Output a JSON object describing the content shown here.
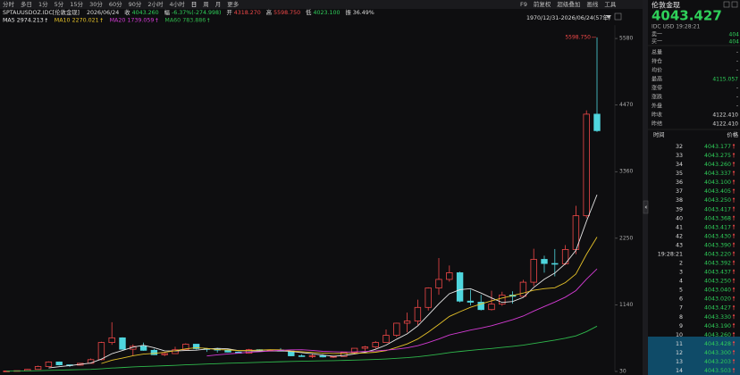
{
  "toolbar": {
    "periods": [
      "分时",
      "多日",
      "1分",
      "5分",
      "15分",
      "30分",
      "60分",
      "90分",
      "2小时",
      "4小时",
      "日",
      "周",
      "月",
      "更多"
    ],
    "tools": [
      "F9",
      "前复权",
      "超级叠加",
      "画线",
      "工具"
    ]
  },
  "info": {
    "symbol": "SPTAUUSDOZ.IDC[伦敦金现]",
    "date": "2026/06/24",
    "fields": [
      {
        "label": "收",
        "value": "4043.260",
        "color": "#2fd05a"
      },
      {
        "label": "幅",
        "value": "-6.37%(-274.998)",
        "color": "#2fd05a"
      },
      {
        "label": "开",
        "value": "4318.270",
        "color": "#f04848"
      },
      {
        "label": "高",
        "value": "5598.750",
        "color": "#f04848"
      },
      {
        "label": "低",
        "value": "4023.100",
        "color": "#2fd05a"
      },
      {
        "label": "振",
        "value": "36.49%",
        "color": "#dddddd"
      }
    ]
  },
  "chart": {
    "type": "candlestick",
    "range": "1970/12/31-2026/06/24(57年)",
    "high_label": "5598.750",
    "up_color": "#f04848",
    "down_color": "#4fd6de",
    "ylim": [
      30,
      5800
    ],
    "yticks": [
      30,
      1140,
      2250,
      3360,
      4470,
      5580
    ],
    "open": [
      35,
      37,
      43,
      64,
      112,
      187,
      140,
      135,
      165,
      226,
      512,
      590,
      400,
      448,
      382,
      309,
      327,
      391,
      484,
      410,
      401,
      386,
      353,
      333,
      392,
      383,
      387,
      369,
      290,
      288,
      290,
      272,
      279,
      347,
      416,
      438,
      513,
      632,
      834,
      870,
      1097,
      1421,
      1564,
      1675,
      1202,
      1184,
      1061,
      1152,
      1303,
      1282,
      1517,
      1898,
      1829,
      1824,
      2063,
      2625,
      4318
    ],
    "high": [
      39,
      44,
      70,
      127,
      198,
      195,
      141,
      168,
      245,
      524,
      850,
      599,
      481,
      510,
      406,
      341,
      442,
      499,
      485,
      418,
      424,
      403,
      360,
      406,
      398,
      396,
      418,
      371,
      313,
      326,
      316,
      293,
      350,
      417,
      456,
      537,
      730,
      842,
      1011,
      1226,
      1431,
      1921,
      1796,
      1694,
      1392,
      1307,
      1375,
      1358,
      1366,
      1557,
      2075,
      1959,
      2070,
      2135,
      2790,
      4381,
      5598.75
    ],
    "low": [
      35,
      37,
      43,
      64,
      112,
      129,
      104,
      131,
      165,
      216,
      474,
      391,
      297,
      374,
      303,
      285,
      326,
      390,
      395,
      356,
      345,
      344,
      330,
      326,
      369,
      372,
      367,
      283,
      273,
      253,
      263,
      256,
      278,
      320,
      375,
      411,
      513,
      603,
      681,
      802,
      1045,
      1308,
      1527,
      1181,
      1131,
      1046,
      1046,
      1124,
      1160,
      1266,
      1451,
      1677,
      1615,
      1804,
      1985,
      2584,
      4023.1
    ],
    "close": [
      37,
      43,
      64,
      112,
      187,
      140,
      135,
      165,
      226,
      512,
      590,
      400,
      448,
      382,
      309,
      327,
      391,
      484,
      410,
      401,
      386,
      353,
      333,
      392,
      383,
      387,
      369,
      290,
      288,
      290,
      272,
      279,
      347,
      416,
      438,
      513,
      632,
      834,
      870,
      1097,
      1421,
      1564,
      1675,
      1202,
      1184,
      1061,
      1152,
      1303,
      1282,
      1517,
      1898,
      1829,
      1824,
      2063,
      2625,
      4318,
      4043.26
    ],
    "ma": [
      {
        "name": "MA5",
        "value_label": "2974.213",
        "color": "#e8e8e8",
        "values": [
          null,
          null,
          null,
          null,
          89,
          109,
          128,
          148,
          171,
          236,
          326,
          379,
          435,
          466,
          426,
          373,
          371,
          379,
          384,
          403,
          414,
          407,
          377,
          373,
          369,
          370,
          373,
          364,
          343,
          325,
          302,
          284,
          295,
          321,
          350,
          399,
          469,
          567,
          657,
          789,
          971,
          1157,
          1325,
          1392,
          1409,
          1337,
          1255,
          1180,
          1196,
          1263,
          1430,
          1566,
          1670,
          1826,
          2048,
          2532,
          2975
        ]
      },
      {
        "name": "MA10",
        "value_label": "2270.021",
        "color": "#e6c229",
        "values": [
          null,
          null,
          null,
          null,
          null,
          null,
          null,
          null,
          null,
          162,
          217,
          253,
          292,
          319,
          331,
          349,
          375,
          407,
          425,
          414,
          394,
          389,
          378,
          379,
          386,
          392,
          390,
          370,
          358,
          347,
          336,
          328,
          330,
          332,
          338,
          350,
          377,
          431,
          489,
          570,
          685,
          813,
          946,
          1025,
          1099,
          1154,
          1206,
          1253,
          1294,
          1336,
          1384,
          1410,
          1425,
          1511,
          1655,
          1981,
          2270
        ]
      },
      {
        "name": "MA20",
        "value_label": "1739.059",
        "color": "#d43bd4",
        "values": [
          null,
          null,
          null,
          null,
          null,
          null,
          null,
          null,
          null,
          null,
          null,
          null,
          null,
          null,
          null,
          null,
          null,
          null,
          null,
          288,
          306,
          321,
          335,
          349,
          359,
          371,
          383,
          389,
          392,
          381,
          365,
          359,
          354,
          356,
          362,
          371,
          384,
          401,
          424,
          459,
          511,
          571,
          638,
          679,
          719,
          752,
          792,
          842,
          892,
          953,
          1035,
          1112,
          1186,
          1268,
          1377,
          1568,
          1738
        ]
      },
      {
        "name": "MA60",
        "value_label": "783.886",
        "color": "#2fb84c",
        "values": [
          35,
          36,
          38,
          42,
          48,
          52,
          56,
          60,
          65,
          74,
          86,
          95,
          105,
          113,
          119,
          125,
          132,
          140,
          147,
          154,
          160,
          166,
          171,
          176,
          182,
          187,
          192,
          196,
          200,
          204,
          207,
          210,
          214,
          219,
          224,
          230,
          238,
          248,
          259,
          274,
          295,
          318,
          344,
          363,
          381,
          397,
          413,
          431,
          448,
          468,
          496,
          524,
          552,
          584,
          623,
          693,
          784
        ]
      }
    ]
  },
  "quote": {
    "name": "伦敦金现",
    "price": "4043.427",
    "meta": "IDC USD 19:28:21",
    "book": [
      {
        "label": "卖一",
        "value": "404"
      },
      {
        "label": "买一",
        "value": "404"
      }
    ],
    "stats": [
      {
        "label": "总量",
        "value": "-"
      },
      {
        "label": "持仓",
        "value": "-"
      },
      {
        "label": "均价",
        "value": "-"
      },
      {
        "label": "最高",
        "value": "4115.057"
      },
      {
        "label": "涨停",
        "value": "-"
      },
      {
        "label": "涨跌",
        "value": "-"
      },
      {
        "label": "外盘",
        "value": "-"
      },
      {
        "label": "昨收",
        "value": "4122.410"
      },
      {
        "label": "昨结",
        "value": "4122.410"
      }
    ]
  },
  "trades": {
    "header": [
      "时间",
      "价格"
    ],
    "rows": [
      [
        "32",
        "4043.177"
      ],
      [
        "33",
        "4043.275"
      ],
      [
        "34",
        "4043.260"
      ],
      [
        "35",
        "4043.337"
      ],
      [
        "36",
        "4043.100"
      ],
      [
        "37",
        "4043.405"
      ],
      [
        "38",
        "4043.250"
      ],
      [
        "39",
        "4043.417"
      ],
      [
        "40",
        "4043.368"
      ],
      [
        "41",
        "4043.417"
      ],
      [
        "42",
        "4043.430"
      ],
      [
        "43",
        "4043.390"
      ],
      [
        "19:28:21",
        "4043.220"
      ],
      [
        "2",
        "4043.392"
      ],
      [
        "3",
        "4043.437"
      ],
      [
        "4",
        "4043.250"
      ],
      [
        "5",
        "4043.040"
      ],
      [
        "6",
        "4043.020"
      ],
      [
        "7",
        "4043.427"
      ],
      [
        "8",
        "4043.330"
      ],
      [
        "9",
        "4043.190"
      ],
      [
        "10",
        "4043.260"
      ],
      [
        "11",
        "4043.428"
      ],
      [
        "12",
        "4043.300"
      ],
      [
        "13",
        "4043.203"
      ],
      [
        "14",
        "4043.503"
      ]
    ]
  }
}
